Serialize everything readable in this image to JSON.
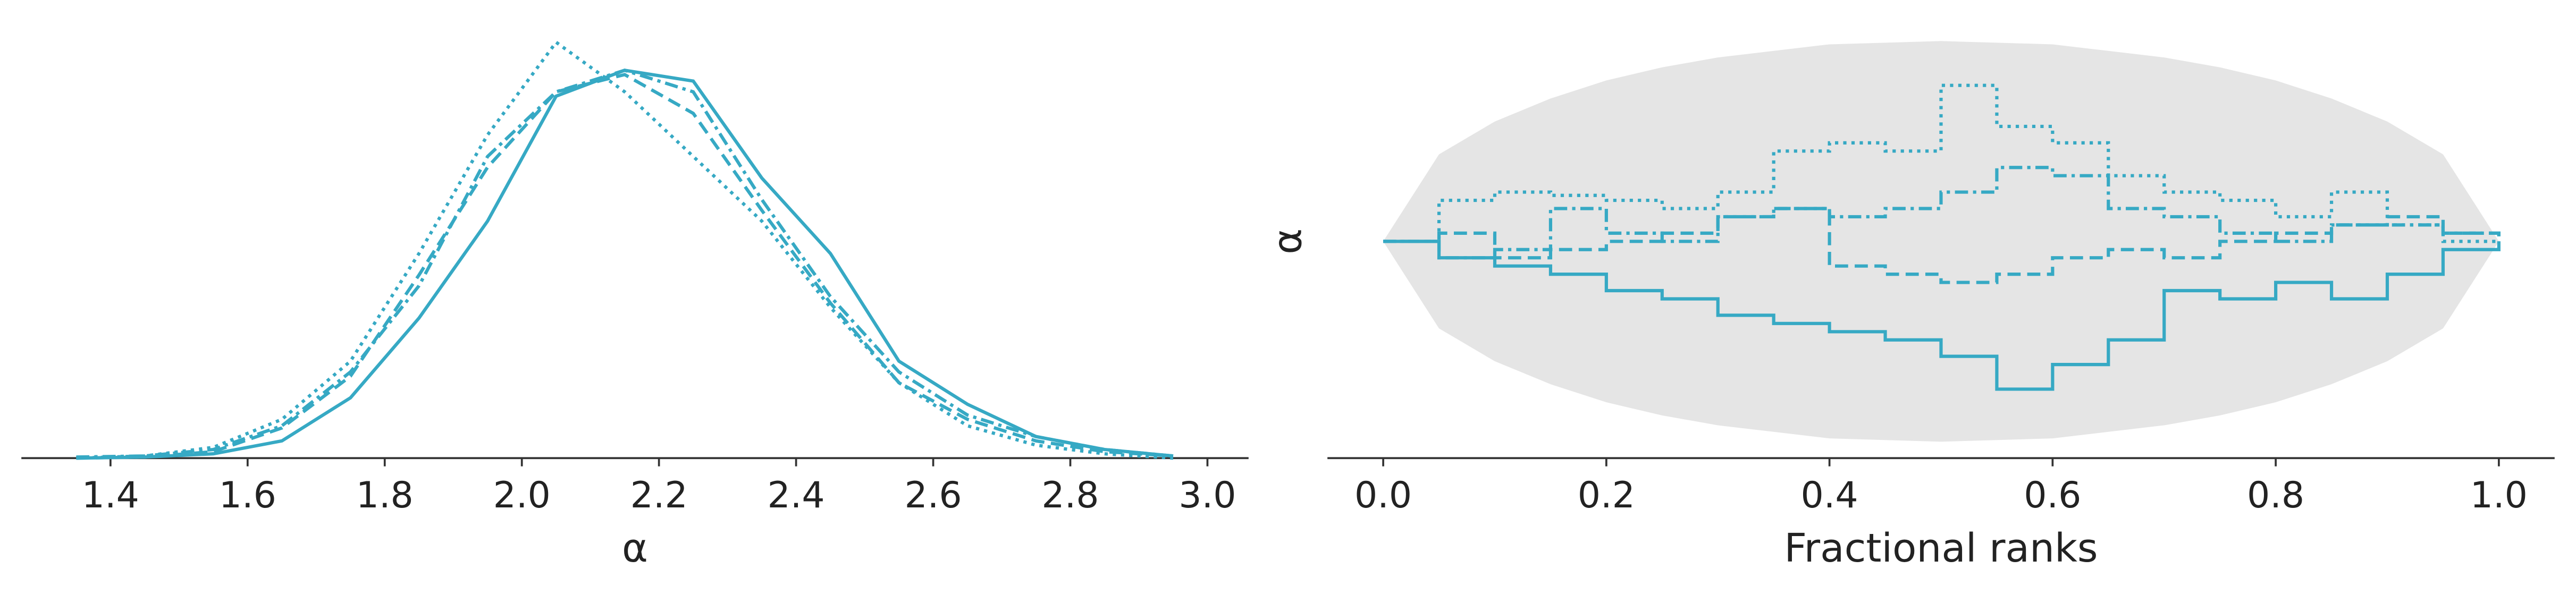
{
  "chart_data": [
    {
      "type": "line",
      "xlabel": "α",
      "x": [
        1.35,
        1.45,
        1.55,
        1.65,
        1.75,
        1.85,
        1.95,
        2.05,
        2.15,
        2.25,
        2.35,
        2.45,
        2.55,
        2.65,
        2.75,
        2.85,
        2.95
      ],
      "series": [
        {
          "color": "#36a9c4",
          "dash": "solid",
          "values": [
            0,
            0.005,
            0.02,
            0.08,
            0.28,
            0.65,
            1.1,
            1.68,
            1.8,
            1.75,
            1.3,
            0.95,
            0.45,
            0.25,
            0.1,
            0.04,
            0.01
          ]
        },
        {
          "color": "#36a9c4",
          "dash": "dotted",
          "values": [
            0,
            0.01,
            0.05,
            0.18,
            0.45,
            0.95,
            1.5,
            1.93,
            1.7,
            1.4,
            1.1,
            0.7,
            0.35,
            0.15,
            0.06,
            0.02,
            0
          ]
        },
        {
          "color": "#36a9c4",
          "dash": "dashed",
          "values": [
            0,
            0.005,
            0.03,
            0.14,
            0.38,
            0.85,
            1.35,
            1.7,
            1.78,
            1.6,
            1.15,
            0.72,
            0.35,
            0.18,
            0.08,
            0.03,
            0.01
          ]
        },
        {
          "color": "#36a9c4",
          "dash": "dashdot",
          "values": [
            0.005,
            0.01,
            0.04,
            0.15,
            0.4,
            0.8,
            1.4,
            1.7,
            1.8,
            1.7,
            1.2,
            0.75,
            0.4,
            0.2,
            0.1,
            0.04,
            0.01
          ]
        }
      ],
      "xlim": [
        1.27,
        3.06
      ],
      "ylim": [
        0,
        2.05
      ],
      "xticks": [
        1.4,
        1.6,
        1.8,
        {
          "value": 2.0,
          "label": "2.0"
        },
        2.2,
        2.4,
        2.6,
        2.8,
        {
          "value": 3.0,
          "label": "3.0"
        }
      ]
    },
    {
      "type": "step",
      "xlabel": "Fractional ranks",
      "ylabel": "α",
      "envelope": {
        "color": "#e5e5e5",
        "x": [
          0,
          0.05,
          0.1,
          0.15,
          0.2,
          0.25,
          0.3,
          0.35,
          0.4,
          0.45,
          0.5,
          0.55,
          0.6,
          0.65,
          0.7,
          0.75,
          0.8,
          0.85,
          0.9,
          0.95,
          1
        ],
        "upper": [
          0,
          0.053,
          0.073,
          0.087,
          0.098,
          0.106,
          0.112,
          0.116,
          0.12,
          0.121,
          0.122,
          0.121,
          0.12,
          0.116,
          0.112,
          0.106,
          0.098,
          0.087,
          0.073,
          0.053,
          0
        ],
        "lower": [
          0,
          -0.053,
          -0.073,
          -0.087,
          -0.098,
          -0.106,
          -0.112,
          -0.116,
          -0.12,
          -0.121,
          -0.122,
          -0.121,
          -0.12,
          -0.116,
          -0.112,
          -0.106,
          -0.098,
          -0.087,
          -0.073,
          -0.053,
          0
        ]
      },
      "x": [
        0,
        0.05,
        0.1,
        0.15,
        0.2,
        0.25,
        0.3,
        0.35,
        0.4,
        0.45,
        0.5,
        0.55,
        0.6,
        0.65,
        0.7,
        0.75,
        0.8,
        0.85,
        0.9,
        0.95,
        1
      ],
      "series": [
        {
          "color": "#36a9c4",
          "dash": "solid",
          "values": [
            0,
            -0.01,
            -0.015,
            -0.02,
            -0.03,
            -0.035,
            -0.045,
            -0.05,
            -0.055,
            -0.06,
            -0.07,
            -0.09,
            -0.075,
            -0.06,
            -0.03,
            -0.035,
            -0.025,
            -0.035,
            -0.02,
            -0.005,
            0
          ]
        },
        {
          "color": "#36a9c4",
          "dash": "dotted",
          "values": [
            0,
            0.025,
            0.03,
            0.028,
            0.025,
            0.02,
            0.03,
            0.055,
            0.06,
            0.055,
            0.095,
            0.07,
            0.06,
            0.04,
            0.03,
            0.025,
            0.015,
            0.03,
            0.01,
            0.0,
            0
          ]
        },
        {
          "color": "#36a9c4",
          "dash": "dashed",
          "values": [
            0,
            0.005,
            -0.01,
            -0.005,
            0.0,
            0.005,
            0.015,
            0.02,
            -0.015,
            -0.02,
            -0.025,
            -0.02,
            -0.01,
            -0.005,
            -0.01,
            0.0,
            0.005,
            0.01,
            0.015,
            0.005,
            0
          ]
        },
        {
          "color": "#36a9c4",
          "dash": "dashdot",
          "values": [
            0,
            -0.01,
            -0.005,
            0.02,
            0.005,
            0.0,
            0.015,
            0.02,
            0.015,
            0.02,
            0.03,
            0.045,
            0.04,
            0.02,
            0.015,
            0.005,
            0.0,
            0.01,
            0.01,
            0.005,
            0
          ]
        }
      ],
      "xlim": [
        -0.05,
        1.05
      ],
      "ylim": [
        -0.132,
        0.137
      ],
      "xticks": [
        {
          "value": 0,
          "label": "0.0"
        },
        0.2,
        0.4,
        0.6,
        0.8,
        {
          "value": 1,
          "label": "1.0"
        }
      ]
    }
  ]
}
